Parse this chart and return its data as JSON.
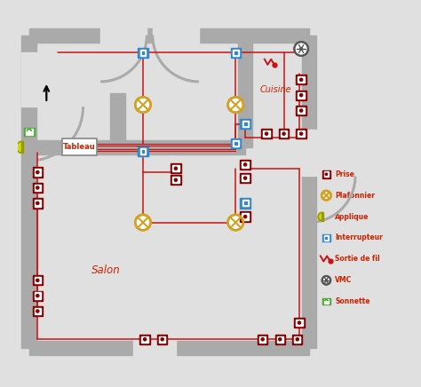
{
  "bg_color": "#e0e0e0",
  "wall_color": "#aaaaaa",
  "wire_color": "#cc1111",
  "interrupteur_color": "#3388cc",
  "prise_color": "#880000",
  "plafonnier_color": "#d4a020",
  "applique_color": "#ccdd00",
  "vmc_color": "#555555",
  "sonnette_color": "#44aa33",
  "text_red": "#cc2200",
  "white": "#ffffff",
  "legend_labels": [
    "Prise",
    "Plafonnier",
    "Applique",
    "Interrupteur",
    "Sortie de fil",
    "VMC",
    "Sonnette"
  ]
}
